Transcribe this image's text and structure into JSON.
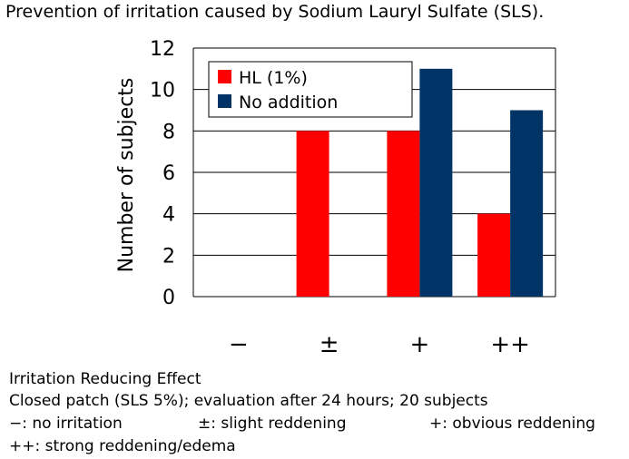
{
  "title": "Prevention of irritation caused by Sodium Lauryl Sulfate (SLS).",
  "chart_data": {
    "type": "bar",
    "categories": [
      "−",
      "±",
      "+",
      "++"
    ],
    "series": [
      {
        "name": "HL (1%)",
        "values": [
          0,
          8,
          8,
          4
        ],
        "color": "#ff0000"
      },
      {
        "name": "No addition",
        "values": [
          0,
          0,
          11,
          9
        ],
        "color": "#003366"
      }
    ],
    "ylabel": "Number of subjects",
    "xlabel": "",
    "ylim": [
      0,
      12
    ],
    "yticks": [
      0,
      2,
      4,
      6,
      8,
      10,
      12
    ],
    "grid": true,
    "legend_placement": "top-left"
  },
  "notes": {
    "line1": "Irritation Reducing Effect",
    "line2": "Closed patch (SLS 5%); evaluation after 24 hours; 20 subjects",
    "key_none": "−: no irritation",
    "key_slight": "±: slight reddening",
    "key_obvious": "+: obvious reddening",
    "key_strong": "++: strong reddening/edema"
  }
}
